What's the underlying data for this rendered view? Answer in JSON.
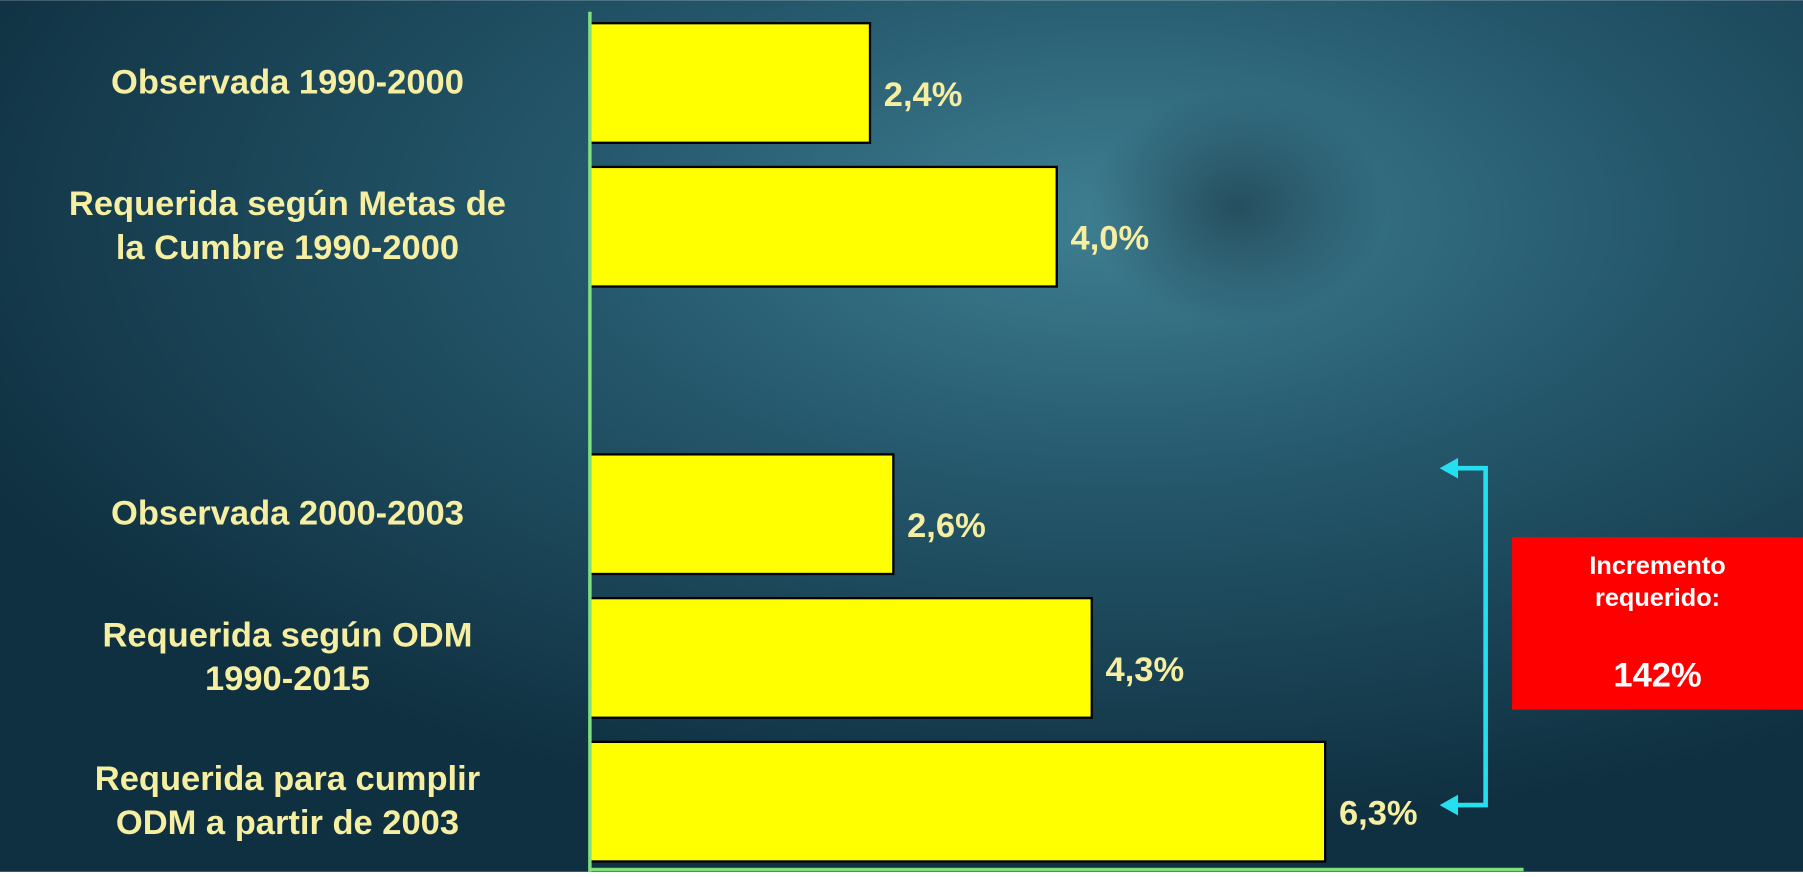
{
  "chart_data": {
    "type": "bar",
    "orientation": "horizontal",
    "categories": [
      "Observada 1990-2000",
      "Requerida según Metas de\nla Cumbre 1990-2000",
      null,
      "Observada 2000-2003",
      "Requerida según ODM\n1990-2015",
      "Requerida para cumplir\nODM a partir de 2003"
    ],
    "values": [
      2.4,
      4.0,
      null,
      2.6,
      4.3,
      6.3
    ],
    "value_labels": [
      "2,4%",
      "4,0%",
      null,
      "2,6%",
      "4,3%",
      "6,3%"
    ],
    "color": "#ffff00",
    "xlim": [
      0,
      8
    ],
    "annotation": {
      "title": "Incremento\nrequerido:",
      "text": "142%"
    }
  }
}
